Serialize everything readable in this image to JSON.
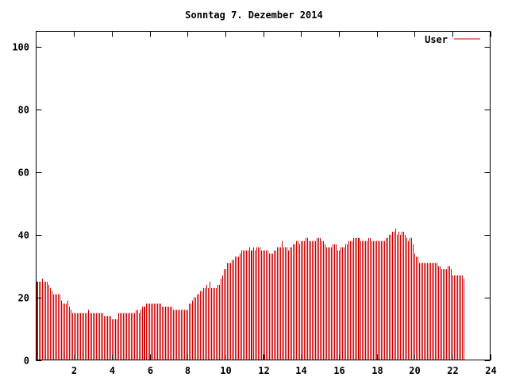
{
  "chart_data": {
    "type": "bar",
    "title": "Sonntag 7. Dezember 2014",
    "xlabel": "",
    "ylabel": "",
    "xlim": [
      0,
      24
    ],
    "ylim": [
      0,
      105
    ],
    "xticks": [
      2,
      4,
      6,
      8,
      10,
      12,
      14,
      16,
      18,
      20,
      22,
      24
    ],
    "yticks": [
      0,
      20,
      40,
      60,
      80,
      100
    ],
    "grid": false,
    "legend_position": "top-right",
    "color": "#cc0000",
    "series": [
      {
        "name": "User",
        "x_start": 0,
        "x_step": 0.0833,
        "values": [
          25,
          25,
          25,
          25,
          26,
          25,
          25,
          25,
          24,
          23,
          22,
          21,
          21,
          21,
          21,
          21,
          19,
          18,
          18,
          18,
          19,
          17,
          16,
          15,
          15,
          15,
          15,
          15,
          15,
          15,
          15,
          15,
          15,
          16,
          15,
          15,
          15,
          15,
          15,
          15,
          15,
          15,
          15,
          14,
          14,
          14,
          14,
          14,
          13,
          13,
          13,
          13,
          15,
          15,
          15,
          15,
          15,
          15,
          15,
          15,
          15,
          15,
          15,
          16,
          16,
          15,
          16,
          17,
          17,
          17,
          18,
          18,
          18,
          18,
          18,
          18,
          18,
          18,
          18,
          18,
          17,
          17,
          17,
          17,
          17,
          17,
          17,
          16,
          16,
          16,
          16,
          16,
          16,
          16,
          16,
          16,
          16,
          18,
          18,
          19,
          20,
          20,
          21,
          21,
          22,
          22,
          23,
          23,
          24,
          23,
          25,
          23,
          23,
          23,
          23,
          24,
          24,
          26,
          27,
          29,
          29,
          31,
          31,
          31,
          32,
          32,
          33,
          33,
          33,
          34,
          35,
          35,
          35,
          35,
          35,
          36,
          35,
          35,
          36,
          35,
          36,
          36,
          36,
          35,
          35,
          35,
          35,
          35,
          34,
          34,
          34,
          35,
          35,
          36,
          36,
          36,
          38,
          36,
          36,
          36,
          35,
          36,
          36,
          37,
          37,
          38,
          38,
          37,
          38,
          38,
          38,
          39,
          39,
          38,
          38,
          38,
          38,
          38,
          39,
          39,
          39,
          38,
          38,
          37,
          36,
          36,
          36,
          36,
          37,
          37,
          37,
          35,
          35,
          36,
          36,
          36,
          37,
          37,
          38,
          38,
          38,
          39,
          39,
          39,
          39,
          39,
          38,
          38,
          38,
          38,
          38,
          39,
          39,
          38,
          38,
          38,
          38,
          38,
          38,
          38,
          38,
          38,
          39,
          39,
          40,
          40,
          41,
          41,
          42,
          40,
          41,
          40,
          41,
          41,
          40,
          39,
          38,
          39,
          39,
          37,
          34,
          33,
          33,
          31,
          31,
          31,
          31,
          31,
          31,
          31,
          31,
          31,
          31,
          31,
          31,
          30,
          30,
          29,
          29,
          29,
          29,
          30,
          30,
          29,
          27,
          27,
          27,
          27,
          27,
          27,
          27,
          26
        ]
      }
    ]
  }
}
